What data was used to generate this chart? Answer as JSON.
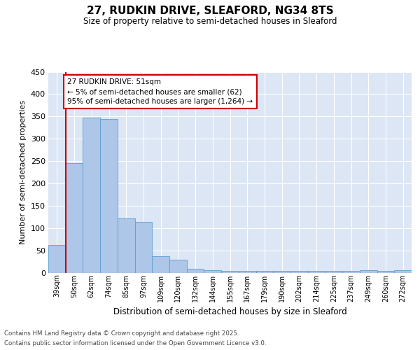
{
  "title_line1": "27, RUDKIN DRIVE, SLEAFORD, NG34 8TS",
  "title_line2": "Size of property relative to semi-detached houses in Sleaford",
  "xlabel": "Distribution of semi-detached houses by size in Sleaford",
  "ylabel": "Number of semi-detached properties",
  "annotation_title": "27 RUDKIN DRIVE: 51sqm",
  "annotation_line2": "← 5% of semi-detached houses are smaller (62)",
  "annotation_line3": "95% of semi-detached houses are larger (1,264) →",
  "footer_line1": "Contains HM Land Registry data © Crown copyright and database right 2025.",
  "footer_line2": "Contains public sector information licensed under the Open Government Licence v3.0.",
  "bin_labels": [
    "39sqm",
    "50sqm",
    "62sqm",
    "74sqm",
    "85sqm",
    "97sqm",
    "109sqm",
    "120sqm",
    "132sqm",
    "144sqm",
    "155sqm",
    "167sqm",
    "179sqm",
    "190sqm",
    "202sqm",
    "214sqm",
    "225sqm",
    "237sqm",
    "249sqm",
    "260sqm",
    "272sqm"
  ],
  "bar_values": [
    62,
    245,
    348,
    344,
    122,
    114,
    38,
    30,
    9,
    6,
    5,
    5,
    5,
    5,
    5,
    5,
    5,
    5,
    6,
    5,
    6
  ],
  "bar_color": "#aec6e8",
  "bar_edge_color": "#5a9fd4",
  "marker_color": "#cc0000",
  "ylim": [
    0,
    450
  ],
  "yticks": [
    0,
    50,
    100,
    150,
    200,
    250,
    300,
    350,
    400,
    450
  ],
  "bg_color": "#dce6f5",
  "grid_color": "#ffffff"
}
